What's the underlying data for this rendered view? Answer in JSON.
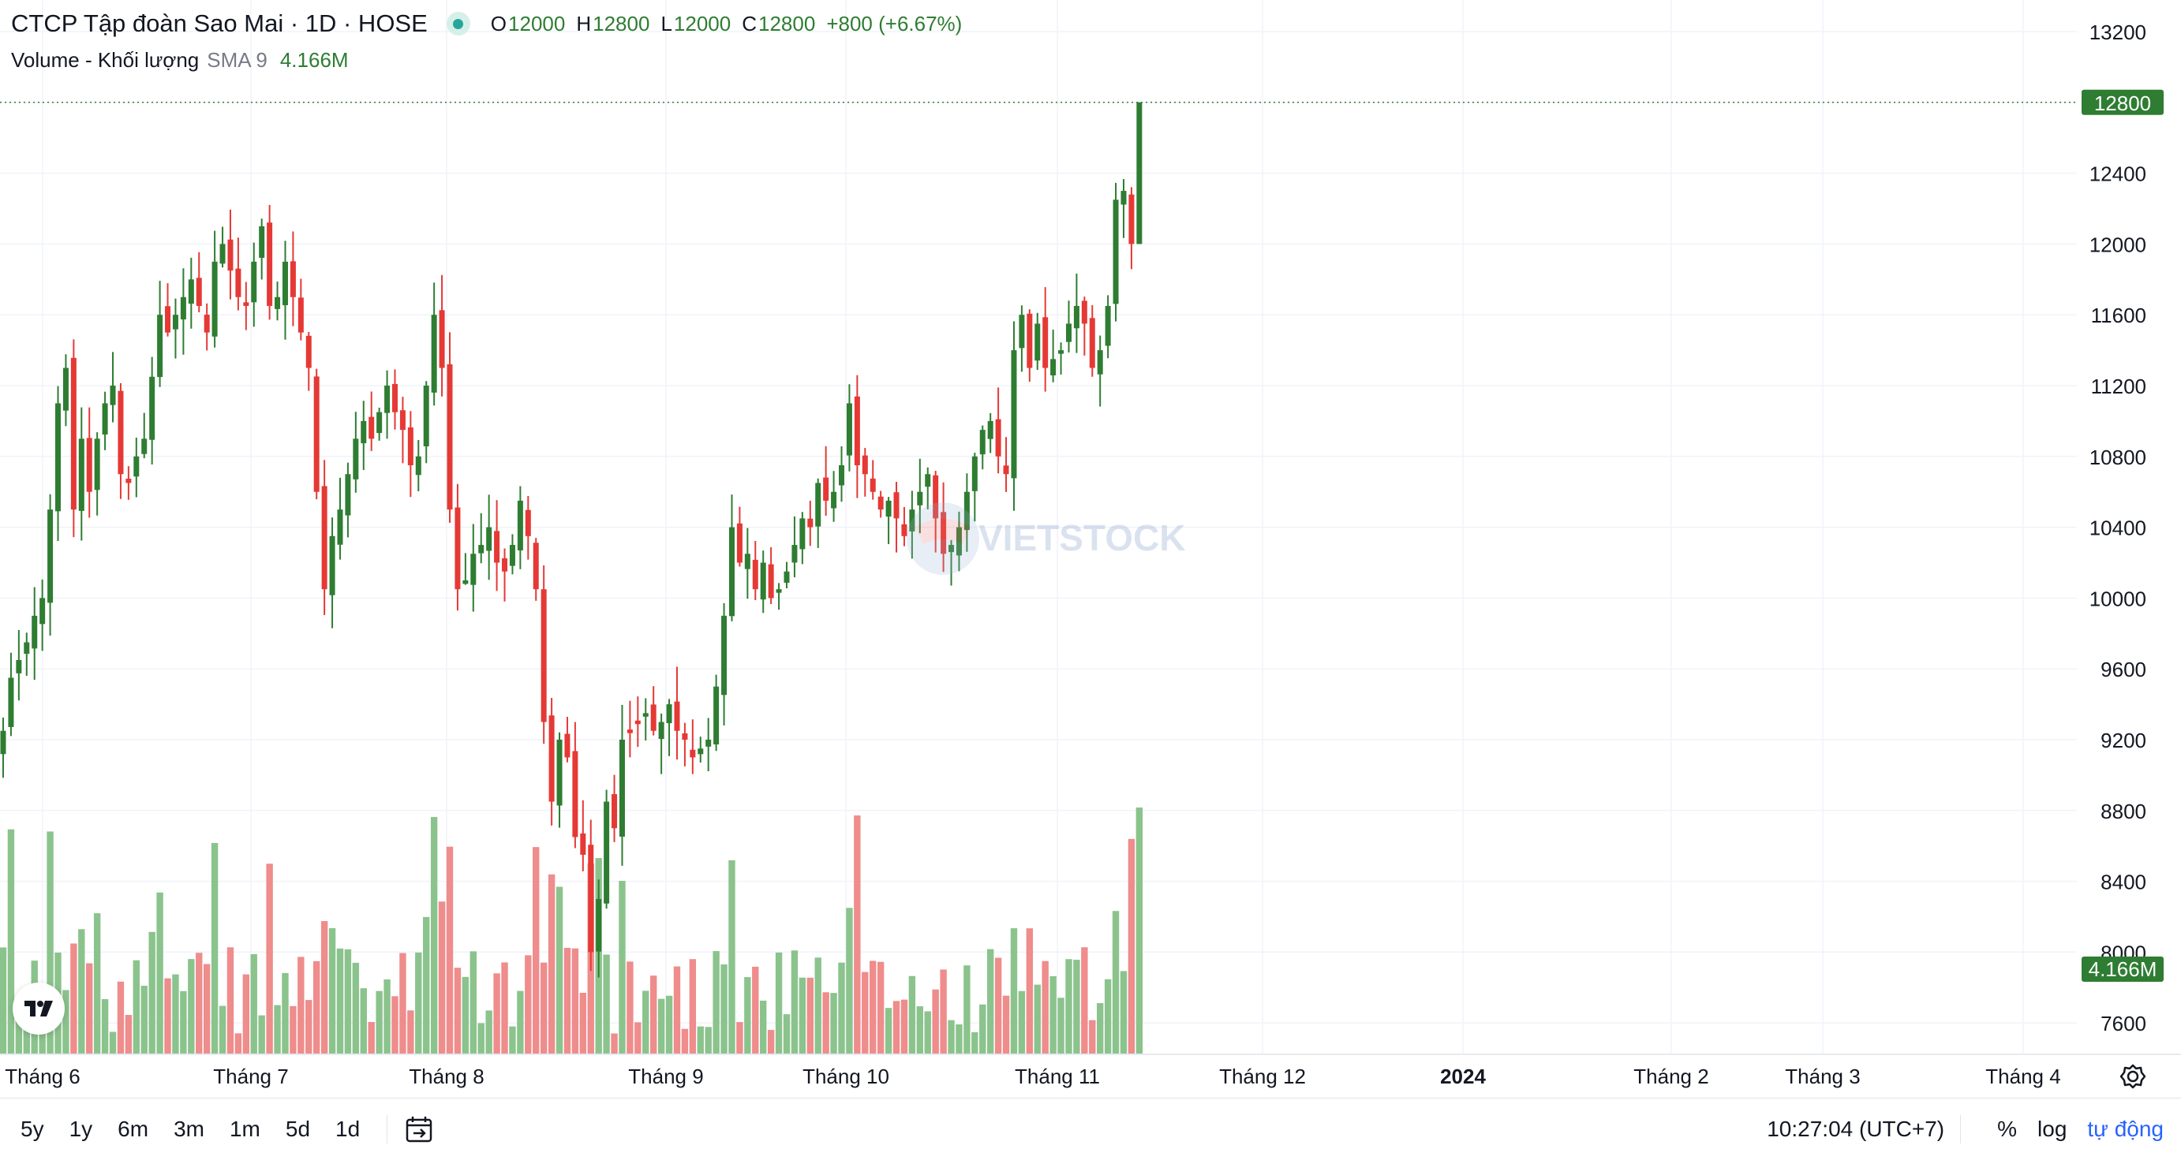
{
  "header": {
    "symbol_title": "CTCP Tập đoàn Sao Mai · 1D · HOSE",
    "o_label": "O",
    "o_value": "12000",
    "h_label": "H",
    "h_value": "12800",
    "l_label": "L",
    "l_value": "12000",
    "c_label": "C",
    "c_value": "12800",
    "change": "+800 (+6.67%)"
  },
  "volume_legend": {
    "label": "Volume - Khối lượng",
    "sma": "SMA 9",
    "value": "4.166M"
  },
  "price_axis": {
    "ticks": [
      "13200",
      "12800",
      "12400",
      "12000",
      "11600",
      "11200",
      "10800",
      "10400",
      "10000",
      "9600",
      "9200",
      "8800",
      "8400",
      "8000",
      "7600"
    ],
    "last_price_label": "12800",
    "last_volume_label": "4.166M"
  },
  "time_axis": {
    "labels": [
      "Tháng 6",
      "Tháng 7",
      "Tháng 8",
      "Tháng 9",
      "Tháng 10",
      "Tháng 11",
      "Tháng 12",
      "2024",
      "Tháng 2",
      "Tháng 3",
      "Tháng 4"
    ]
  },
  "toolbar": {
    "ranges": [
      "5y",
      "1y",
      "6m",
      "3m",
      "1m",
      "5d",
      "1d"
    ],
    "time": "10:27:04 (UTC+7)",
    "percent": "%",
    "log": "log",
    "auto": "tự động"
  },
  "watermark_text": "VIETSTOCK",
  "colors": {
    "up": "#2e7d32",
    "down": "#e53935",
    "up_volume": "#8bc38d",
    "down_volume": "#ef8c8c",
    "grid": "#f0f3fa",
    "last_price": "#2e7d32"
  },
  "icons": [
    "tradingview-logo-icon",
    "goto-date-icon",
    "settings-gear-icon",
    "status-dot-icon"
  ],
  "chart_data": {
    "type": "candlestick",
    "title": "CTCP Tập đoàn Sao Mai · 1D · HOSE",
    "ylim": [
      7400,
      13400
    ],
    "y_ticks": [
      13200,
      12800,
      12400,
      12000,
      11600,
      11200,
      10800,
      10400,
      10000,
      9600,
      9200,
      8800,
      8400,
      8000,
      7600
    ],
    "x_ticks": [
      "Tháng 6",
      "Tháng 7",
      "Tháng 8",
      "Tháng 9",
      "Tháng 10",
      "Tháng 11",
      "Tháng 12",
      "2024",
      "Tháng 2",
      "Tháng 3",
      "Tháng 4"
    ],
    "last_bar": {
      "open": 12000,
      "high": 12800,
      "low": 12000,
      "close": 12800,
      "volume": "4.166M"
    },
    "path_closes": [
      9250,
      9550,
      9650,
      9750,
      9900,
      10000,
      10500,
      11100,
      11300,
      10500,
      10900,
      10600,
      10900,
      11100,
      11200,
      10700,
      10650,
      10800,
      10900,
      11250,
      11600,
      11500,
      11600,
      11700,
      11800,
      11650,
      11500,
      11900,
      12000,
      11850,
      11700,
      11650,
      11900,
      12100,
      11650,
      11700,
      11900,
      11700,
      11500,
      11300,
      10600,
      10050,
      10350,
      10500,
      10700,
      10900,
      11000,
      10900,
      11050,
      11200,
      11050,
      10950,
      10750,
      10800,
      11200,
      11600,
      11300,
      10500,
      10050,
      10100,
      10250,
      10300,
      10400,
      10200,
      10150,
      10300,
      10550,
      10350,
      10050,
      9300,
      8850,
      9200,
      9100,
      8650,
      8550,
      8000,
      8300,
      8850,
      8700,
      9200,
      9250,
      9300,
      9350,
      9250,
      9300,
      9400,
      9250,
      9200,
      9100,
      9150,
      9200,
      9500,
      9900,
      10400,
      10200,
      10250,
      10050,
      10200,
      10000,
      10050,
      10150,
      10300,
      10450,
      10400,
      10650,
      10550,
      10600,
      10750,
      11100,
      10750,
      10700,
      10600,
      10500,
      10550,
      10450,
      10350,
      10500,
      10600,
      10700,
      10450,
      10250,
      10300,
      10400,
      10600,
      10800,
      10950,
      11000,
      10800,
      10700,
      11400,
      11600,
      11300,
      11550,
      11300,
      11350,
      11400,
      11550,
      11650,
      11550,
      11300,
      11400,
      11650,
      12250,
      12300,
      12000,
      12800
    ]
  }
}
